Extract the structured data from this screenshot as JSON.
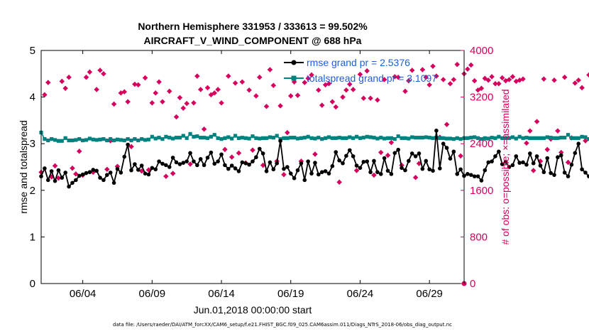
{
  "chart_data": {
    "type": "line",
    "title_line1": "Northern Hemisphere 331953 / 333613 = 99.502%",
    "title_line2": "AIRCRAFT_V_WIND_COMPONENT @ 688 hPa",
    "xlabel": "Jun.01,2018 00:00:00 start",
    "ylabel_left": "rmse and totalspread",
    "ylabel_right": "# of obs: o=possible; ×=assimilated",
    "footer": "data file: /Users/raeder/DAI/ATM_forcXX/CAM6_setup/f.e21.FHIST_BGC.f09_025.CAM6assim.011/Diags_NTrS_2018-06/obs_diag_output.nc",
    "xlim": [
      1,
      31.5
    ],
    "ylim_left": [
      0,
      5
    ],
    "ylim_right": [
      0,
      4000
    ],
    "x_ticks": [
      {
        "value": 4,
        "label": "06/04"
      },
      {
        "value": 9,
        "label": "06/09"
      },
      {
        "value": 14,
        "label": "06/14"
      },
      {
        "value": 19,
        "label": "06/19"
      },
      {
        "value": 24,
        "label": "06/24"
      },
      {
        "value": 29,
        "label": "06/29"
      }
    ],
    "y_ticks_left": [
      {
        "value": 0,
        "label": "0"
      },
      {
        "value": 1,
        "label": "1"
      },
      {
        "value": 2,
        "label": "2"
      },
      {
        "value": 3,
        "label": "3"
      },
      {
        "value": 4,
        "label": "4"
      },
      {
        "value": 5,
        "label": "5"
      }
    ],
    "y_ticks_right": [
      {
        "value": 0,
        "label": "0"
      },
      {
        "value": 800,
        "label": "800"
      },
      {
        "value": 1600,
        "label": "1600"
      },
      {
        "value": 2400,
        "label": "2400"
      },
      {
        "value": 3200,
        "label": "3200"
      },
      {
        "value": 4000,
        "label": "4000"
      }
    ],
    "legend": [
      {
        "name": "rmse",
        "text": "rmse grand pr = 2.5376",
        "color": "#000000"
      },
      {
        "name": "totalspread",
        "text": "totalspread grand pr = 3.1097",
        "color": "#00827f"
      }
    ],
    "colors": {
      "rmse": "#000000",
      "spread": "#00827f",
      "obs": "#d6005d"
    },
    "series": [
      {
        "name": "rmse",
        "axis": "left",
        "x_start": 1,
        "x_step": 0.25,
        "values": [
          2.3,
          2.47,
          2.22,
          2.41,
          2.2,
          2.43,
          2.27,
          2.38,
          2.08,
          2.16,
          2.22,
          2.31,
          2.34,
          2.37,
          2.39,
          2.44,
          2.42,
          2.27,
          2.22,
          2.33,
          2.38,
          2.16,
          2.46,
          2.38,
          2.72,
          2.98,
          2.43,
          2.56,
          2.44,
          2.53,
          2.36,
          2.34,
          2.48,
          2.45,
          2.62,
          2.57,
          2.54,
          2.5,
          2.7,
          2.6,
          2.56,
          2.59,
          2.62,
          2.8,
          2.62,
          2.54,
          2.67,
          2.54,
          2.7,
          2.81,
          2.57,
          2.62,
          2.77,
          2.54,
          2.46,
          2.53,
          2.47,
          2.41,
          2.6,
          2.58,
          2.55,
          2.62,
          2.71,
          2.89,
          2.79,
          2.41,
          2.6,
          2.45,
          2.58,
          3.06,
          2.46,
          2.5,
          2.36,
          2.26,
          2.43,
          2.58,
          2.22,
          2.62,
          2.36,
          2.59,
          2.34,
          2.39,
          2.41,
          2.36,
          2.52,
          2.82,
          2.64,
          2.58,
          2.74,
          2.86,
          2.73,
          2.53,
          2.48,
          2.61,
          2.62,
          2.39,
          2.63,
          2.39,
          2.35,
          2.69,
          2.42,
          2.35,
          2.8,
          2.87,
          2.48,
          2.43,
          2.63,
          2.79,
          2.73,
          2.79,
          2.46,
          2.63,
          2.45,
          2.42,
          3.28,
          2.47,
          3.0,
          2.91,
          2.68,
          2.83,
          2.35,
          2.45,
          2.31,
          2.35,
          2.33,
          2.3,
          2.3,
          2.21,
          2.43,
          2.6,
          2.62,
          2.73,
          2.83,
          2.56,
          2.61,
          2.5,
          2.54,
          2.73,
          2.59,
          2.6,
          2.55,
          2.79,
          2.58,
          2.73,
          2.53,
          2.39,
          2.69,
          2.37,
          2.33,
          2.71,
          2.75,
          2.38,
          2.3,
          2.55,
          2.8,
          3.0,
          2.45,
          2.38,
          2.3,
          2.3,
          2.31
        ]
      },
      {
        "name": "totalspread",
        "axis": "left",
        "x_start": 1,
        "x_step": 0.25,
        "values": [
          3.24,
          3.1,
          3.07,
          3.1,
          3.08,
          3.06,
          3.06,
          3.12,
          3.07,
          3.07,
          3.08,
          3.1,
          3.07,
          3.08,
          3.11,
          3.09,
          3.08,
          3.09,
          3.1,
          3.07,
          3.1,
          3.07,
          3.09,
          3.08,
          3.07,
          3.1,
          3.07,
          3.1,
          3.07,
          3.1,
          3.08,
          3.09,
          3.15,
          3.11,
          3.13,
          3.1,
          3.15,
          3.13,
          3.11,
          3.13,
          3.13,
          3.17,
          3.12,
          3.21,
          3.15,
          3.16,
          3.13,
          3.13,
          3.12,
          3.15,
          3.19,
          3.12,
          3.1,
          3.12,
          3.14,
          3.11,
          3.17,
          3.12,
          3.13,
          3.12,
          3.11,
          3.16,
          3.12,
          3.11,
          3.12,
          3.12,
          3.14,
          3.13,
          3.17,
          3.1,
          3.12,
          3.12,
          3.13,
          3.13,
          3.11,
          3.12,
          3.13,
          3.15,
          3.12,
          3.11,
          3.13,
          3.1,
          3.12,
          3.14,
          3.12,
          3.12,
          3.13,
          3.12,
          3.12,
          3.14,
          3.12,
          3.15,
          3.12,
          3.13,
          3.15,
          3.14,
          3.13,
          3.11,
          3.13,
          3.11,
          3.12,
          3.12,
          3.1,
          3.16,
          3.12,
          3.12,
          3.11,
          3.14,
          3.13,
          3.13,
          3.13,
          3.14,
          3.13,
          3.12,
          3.13,
          3.12,
          3.12,
          3.11,
          3.11,
          3.1,
          3.12,
          3.1,
          3.12,
          3.12,
          3.13,
          3.14,
          3.12,
          3.1,
          3.12,
          3.11,
          3.13,
          3.12,
          3.15,
          3.12,
          3.12,
          3.12,
          3.14,
          3.11,
          3.15,
          3.12,
          3.13,
          3.12,
          3.12,
          3.12,
          3.12,
          3.12,
          3.14,
          3.13,
          3.12,
          3.12,
          3.13,
          3.13,
          3.19,
          3.12,
          3.12,
          3.12,
          3.15,
          3.14,
          3.1,
          3.11,
          3.1
        ]
      },
      {
        "name": "obs_assimilated",
        "axis": "right",
        "x_start": 1,
        "x_step": 0.25,
        "values": [
          1910,
          3240,
          3450,
          1830,
          2020,
          1810,
          3470,
          3350,
          3540,
          1980,
          1880,
          2270,
          1860,
          3540,
          3630,
          1910,
          3330,
          3660,
          3600,
          1960,
          2450,
          3080,
          2010,
          3270,
          3290,
          3120,
          2350,
          3420,
          3410,
          1930,
          3530,
          1950,
          3100,
          3270,
          3460,
          3120,
          1840,
          3300,
          1890,
          2860,
          3190,
          3010,
          3090,
          2050,
          3100,
          3560,
          3330,
          2650,
          3360,
          3240,
          3270,
          3330,
          3100,
          2300,
          3560,
          2170,
          3440,
          2240,
          3460,
          2070,
          3320,
          2290,
          3220,
          3540,
          2030,
          3040,
          3670,
          3400,
          2100,
          3050,
          1870,
          2590,
          3220,
          3460,
          3230,
          2100,
          3450,
          3520,
          3580,
          2220,
          3320,
          3060,
          3410,
          3430,
          3120,
          3030,
          1740,
          3200,
          3320,
          3420,
          3330,
          1940,
          3590,
          3180,
          3650,
          3180,
          1860,
          3150,
          2250,
          3500,
          2200,
          2420,
          3550,
          3540,
          2030,
          3300,
          3480,
          3660,
          1820,
          2060,
          3670,
          3540,
          3410,
          3730,
          3560,
          2510,
          3500,
          2730,
          3430,
          3500,
          3760,
          2190,
          3600,
          3680,
          3750,
          3480,
          3320,
          3350,
          3520,
          3490,
          3550,
          3430,
          3430,
          3530,
          3480,
          3500,
          3550,
          3470,
          3490,
          3510,
          2410,
          2620,
          1940,
          2780,
          2100,
          3510,
          2300,
          2480,
          3490,
          2620,
          2250,
          3540,
          2080,
          2500,
          3440,
          3490,
          3360,
          2450,
          3580,
          3530,
          2510,
          2380,
          3080
        ]
      }
    ]
  }
}
